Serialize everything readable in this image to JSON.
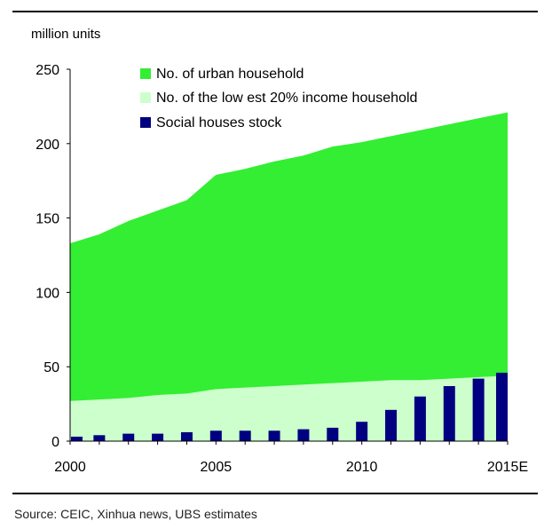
{
  "source_note": "Source: CEIC, Xinhua news, UBS estimates",
  "chart_data": {
    "type": "area",
    "title": "",
    "ylabel": "million units",
    "xlabel": "",
    "ylim": [
      0,
      250
    ],
    "yticks": [
      0,
      50,
      100,
      150,
      200,
      250
    ],
    "x": [
      2000,
      2001,
      2002,
      2003,
      2004,
      2005,
      2006,
      2007,
      2008,
      2009,
      2010,
      2011,
      2012,
      2013,
      2014,
      2015
    ],
    "xtick_labels": [
      "2000",
      "2005",
      "2010",
      "2015E"
    ],
    "grid": false,
    "legend_position": "top",
    "series": [
      {
        "name": "No. of urban household",
        "type": "area",
        "color": "#33ee33",
        "values": [
          133,
          139,
          148,
          155,
          162,
          179,
          183,
          188,
          192,
          198,
          201,
          205,
          209,
          213,
          217,
          221
        ]
      },
      {
        "name": "No. of the low est 20% income household",
        "type": "area",
        "color": "#ccffcc",
        "values": [
          27,
          28,
          29,
          31,
          32,
          35,
          36,
          37,
          38,
          39,
          40,
          41,
          41,
          42,
          43,
          44
        ]
      },
      {
        "name": "Social houses stock",
        "type": "bar",
        "color": "#000080",
        "values": [
          3,
          4,
          5,
          5,
          6,
          7,
          7,
          7,
          8,
          9,
          13,
          21,
          30,
          37,
          42,
          46
        ]
      }
    ]
  }
}
